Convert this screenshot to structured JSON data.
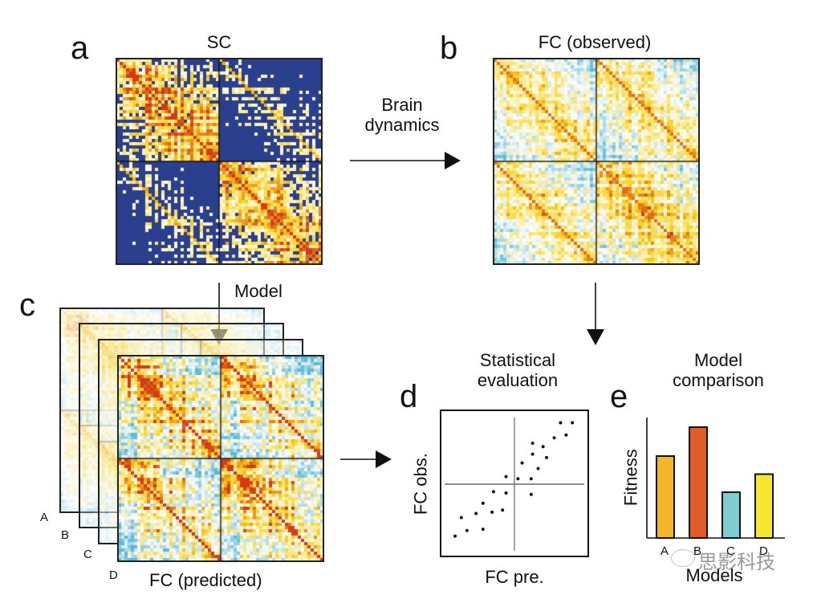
{
  "figure": {
    "panels": {
      "a": {
        "letter": "a",
        "title": "SC"
      },
      "b": {
        "letter": "b",
        "title": "FC (observed)"
      },
      "c": {
        "letter": "c",
        "title": "FC (predicted)",
        "model_label": "Model",
        "stack_labels": [
          "A",
          "B",
          "C",
          "D"
        ]
      },
      "d": {
        "letter": "d",
        "title_line1": "Statistical",
        "title_line2": "evaluation",
        "xlabel": "FC pre.",
        "ylabel": "FC obs."
      },
      "e": {
        "letter": "e",
        "title_line1": "Model",
        "title_line2": "comparison",
        "xlabel": "Models",
        "ylabel": "Fitness"
      }
    },
    "arrows": {
      "brain_dynamics_line1": "Brain",
      "brain_dynamics_line2": "dynamics"
    },
    "matrix_colors": {
      "sc_background": "#2b3f8f",
      "fc_negative": "#5bb8d6",
      "fc_neutral": "#ffffff",
      "fc_positive": "#f7d21f",
      "fc_strong": "#d43a16"
    },
    "watermark": "思影科技"
  },
  "chart_data": [
    {
      "type": "scatter",
      "title": "Statistical evaluation",
      "xlabel": "FC pre.",
      "ylabel": "FC obs.",
      "xlim": [
        -1,
        1
      ],
      "ylim": [
        -1,
        1
      ],
      "axes_cross_at_zero": true,
      "ticks": false,
      "points": [
        {
          "x": -0.85,
          "y": -0.76
        },
        {
          "x": -0.68,
          "y": -0.68
        },
        {
          "x": -0.45,
          "y": -0.66
        },
        {
          "x": -0.76,
          "y": -0.49
        },
        {
          "x": -0.55,
          "y": -0.43
        },
        {
          "x": -0.32,
          "y": -0.41
        },
        {
          "x": -0.17,
          "y": -0.38
        },
        {
          "x": -0.45,
          "y": -0.28
        },
        {
          "x": -0.3,
          "y": -0.11
        },
        {
          "x": -0.12,
          "y": -0.13
        },
        {
          "x": 0.24,
          "y": -0.15
        },
        {
          "x": -0.12,
          "y": 0.11
        },
        {
          "x": 0.05,
          "y": 0.08
        },
        {
          "x": 0.24,
          "y": 0.08
        },
        {
          "x": 0.11,
          "y": 0.31
        },
        {
          "x": 0.34,
          "y": 0.23
        },
        {
          "x": 0.26,
          "y": 0.44
        },
        {
          "x": 0.26,
          "y": 0.6
        },
        {
          "x": 0.41,
          "y": 0.55
        },
        {
          "x": 0.46,
          "y": 0.39
        },
        {
          "x": 0.57,
          "y": 0.68
        },
        {
          "x": 0.74,
          "y": 0.72
        },
        {
          "x": 0.66,
          "y": 0.9
        },
        {
          "x": 0.83,
          "y": 0.9
        }
      ]
    },
    {
      "type": "bar",
      "title": "Model comparison",
      "xlabel": "Models",
      "ylabel": "Fitness",
      "categories": [
        "A",
        "B",
        "C",
        "D"
      ],
      "values": [
        0.68,
        0.92,
        0.38,
        0.53
      ],
      "colors": [
        "#f2b628",
        "#e05c28",
        "#7ecdd3",
        "#f5e62f"
      ],
      "ylim": [
        0,
        1
      ],
      "ticks": false
    }
  ]
}
